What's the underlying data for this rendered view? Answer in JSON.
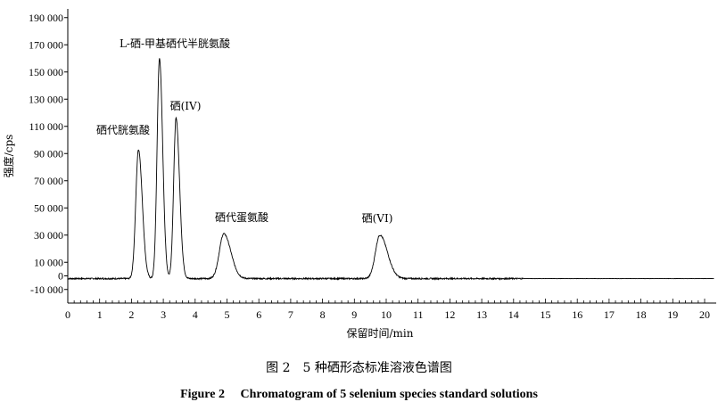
{
  "chart_data": {
    "type": "line",
    "xlabel": "保留时间/min",
    "ylabel": "强度/cps",
    "xlim": [
      0,
      20.25
    ],
    "ylim": [
      -10000,
      197000
    ],
    "x_ticks": [
      0,
      1,
      2,
      3,
      4,
      5,
      6,
      7,
      8,
      9,
      10,
      11,
      12,
      13,
      14,
      15,
      16,
      17,
      18,
      19,
      20
    ],
    "x_tick_labels": [
      "0",
      "1",
      "2",
      "3",
      "4",
      "5",
      "6",
      "7",
      "8",
      "9",
      "10",
      "11",
      "12",
      "13",
      "14",
      "15",
      "16",
      "17",
      "18",
      "19",
      "20"
    ],
    "y_ticks": [
      -10000,
      0,
      10000,
      30000,
      50000,
      70000,
      90000,
      110000,
      130000,
      150000,
      170000,
      190000
    ],
    "y_tick_labels": [
      "-10 000",
      "0",
      "10 000",
      "30 000",
      "50 000",
      "70 000",
      "90 000",
      "110 000",
      "130 000",
      "150 000",
      "170 000",
      "190 000"
    ],
    "baseline": -2000,
    "line_color": "#000000",
    "series": [
      {
        "peaks": [
          {
            "label": "硒代胱氨酸",
            "x": 2.22,
            "height": 95000,
            "sigma_left": 0.085,
            "sigma_right": 0.12
          },
          {
            "label": "L-硒-甲基硒代半胱氨酸",
            "x": 2.88,
            "height": 162000,
            "sigma_left": 0.075,
            "sigma_right": 0.1
          },
          {
            "label": "硒(IV)",
            "x": 3.4,
            "height": 118000,
            "sigma_left": 0.075,
            "sigma_right": 0.11
          },
          {
            "label": "硒代蛋氨酸",
            "x": 4.9,
            "height": 33000,
            "sigma_left": 0.14,
            "sigma_right": 0.22
          },
          {
            "label": "硒(VI)",
            "x": 9.8,
            "height": 32000,
            "sigma_left": 0.14,
            "sigma_right": 0.24
          }
        ]
      }
    ],
    "grid": false
  },
  "captions": {
    "cn": "图 2　5 种硒形态标准溶液色谱图",
    "en": "Figure 2　 Chromatogram of 5 selenium species standard solutions"
  }
}
